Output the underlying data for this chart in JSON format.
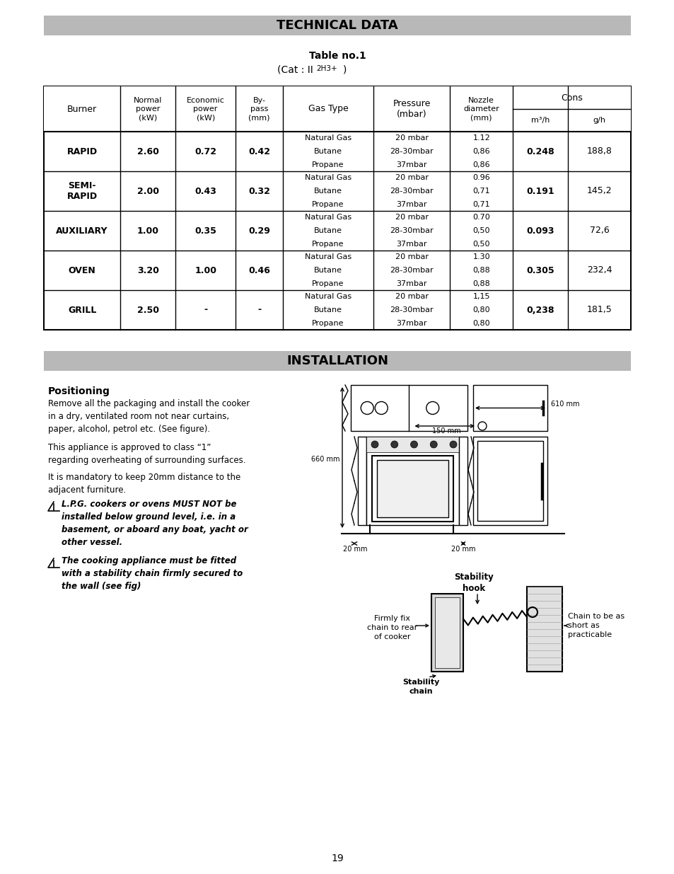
{
  "page_bg": "#ffffff",
  "title1": "TECHNICAL DATA",
  "title1_bg": "#b8b8b8",
  "table_note1": "Table no.1",
  "cons_header": "Cons",
  "rows": [
    {
      "burner": "RAPID",
      "normal": "2.60",
      "economic": "0.72",
      "bypass": "0.42",
      "gas": [
        "Natural Gas",
        "Butane",
        "Propane"
      ],
      "pressure": [
        "20 mbar",
        "28-30mbar",
        "37mbar"
      ],
      "nozzle": [
        "1.12",
        "0,86",
        "0,86"
      ],
      "m3h": "0.248",
      "gh": "188,8"
    },
    {
      "burner": "SEMI-\nRAPID",
      "normal": "2.00",
      "economic": "0.43",
      "bypass": "0.32",
      "gas": [
        "Natural Gas",
        "Butane",
        "Propane"
      ],
      "pressure": [
        "20 mbar",
        "28-30mbar",
        "37mbar"
      ],
      "nozzle": [
        "0.96",
        "0,71",
        "0,71"
      ],
      "m3h": "0.191",
      "gh": "145,2"
    },
    {
      "burner": "AUXILIARY",
      "normal": "1.00",
      "economic": "0.35",
      "bypass": "0.29",
      "gas": [
        "Natural Gas",
        "Butane",
        "Propane"
      ],
      "pressure": [
        "20 mbar",
        "28-30mbar",
        "37mbar"
      ],
      "nozzle": [
        "0.70",
        "0,50",
        "0,50"
      ],
      "m3h": "0.093",
      "gh": "72,6"
    },
    {
      "burner": "OVEN",
      "normal": "3.20",
      "economic": "1.00",
      "bypass": "0.46",
      "gas": [
        "Natural Gas",
        "Butane",
        "Propane"
      ],
      "pressure": [
        "20 mbar",
        "28-30mbar",
        "37mbar"
      ],
      "nozzle": [
        "1.30",
        "0,88",
        "0,88"
      ],
      "m3h": "0.305",
      "gh": "232,4"
    },
    {
      "burner": "GRILL",
      "normal": "2.50",
      "economic": "-",
      "bypass": "-",
      "gas": [
        "Natural Gas",
        "Butane",
        "Propane"
      ],
      "pressure": [
        "20 mbar",
        "28-30mbar",
        "37mbar"
      ],
      "nozzle": [
        "1,15",
        "0,80",
        "0,80"
      ],
      "m3h": "0,238",
      "gh": "181,5"
    }
  ],
  "title2": "INSTALLATION",
  "title2_bg": "#b8b8b8",
  "positioning_title": "Positioning",
  "positioning_text1": "Remove all the packaging and install the cooker\nin a dry, ventilated room not near curtains,\npaper, alcohol, petrol etc. (See figure).",
  "positioning_text2": "This appliance is approved to class “1”\nregarding overheating of surrounding surfaces.",
  "positioning_text3": "It is mandatory to keep 20mm distance to the\nadjacent furniture.",
  "warning1": "L.P.G. cookers or ovens MUST NOT be\ninstalled below ground level, i.e. in a\nbasement, or aboard any boat, yacht or\nother vessel.",
  "warning2": "The cooking appliance must be fitted\nwith a stability chain firmly secured to\nthe wall (see fig)",
  "page_number": "19"
}
